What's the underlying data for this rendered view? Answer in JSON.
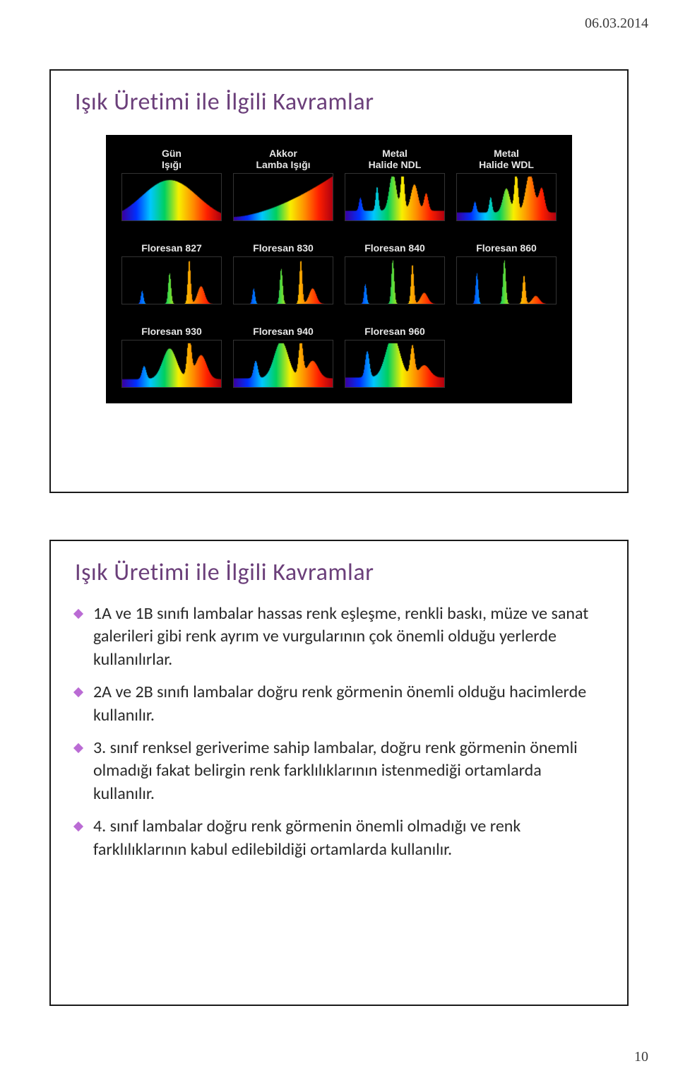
{
  "header_date": "06.03.2014",
  "footer_page": "10",
  "slide1": {
    "title": "Işık Üretimi ile İlgili Kavramlar",
    "figure": {
      "background": "#000000",
      "rainbow_stops": [
        "#3a00a0",
        "#0030ff",
        "#00c8ff",
        "#00d060",
        "#f8f000",
        "#ff9000",
        "#ff2000",
        "#b00010"
      ],
      "rows": [
        [
          {
            "label": "Gün\nIşığı",
            "type": "continuous_smooth"
          },
          {
            "label": "Akkor\nLamba Işığı",
            "type": "continuous_rising"
          },
          {
            "label": "Metal\nHalide NDL",
            "type": "spiky_broad"
          },
          {
            "label": "Metal\nHalide WDL",
            "type": "spiky_warm"
          }
        ],
        [
          {
            "label": "Floresan 827",
            "type": "triphosphor_827"
          },
          {
            "label": "Floresan 830",
            "type": "triphosphor_830"
          },
          {
            "label": "Floresan 840",
            "type": "triphosphor_840"
          },
          {
            "label": "Floresan 860",
            "type": "triphosphor_860"
          }
        ],
        [
          {
            "label": "Floresan 930",
            "type": "broad_930"
          },
          {
            "label": "Floresan 940",
            "type": "broad_940"
          },
          {
            "label": "Floresan 960",
            "type": "broad_960"
          },
          {
            "label": "",
            "type": "blank"
          }
        ]
      ]
    }
  },
  "slide2": {
    "title": "Işık Üretimi ile İlgili Kavramlar",
    "bullets": [
      "1A ve 1B sınıfı lambalar hassas renk eşleşme, renkli baskı, müze ve sanat galerileri gibi renk ayrım ve vurgularının çok önemli olduğu yerlerde kullanılırlar.",
      "2A ve 2B sınıfı lambalar doğru renk görmenin önemli olduğu hacimlerde kullanılır.",
      "3. sınıf renksel geriverime sahip lambalar, doğru renk görmenin önemli olmadığı fakat belirgin renk farklılıklarının istenmediği ortamlarda kullanılır.",
      "4. sınıf lambalar doğru renk görmenin önemli olmadığı ve renk farklılıklarının kabul edilebildiği ortamlarda kullanılır."
    ]
  }
}
